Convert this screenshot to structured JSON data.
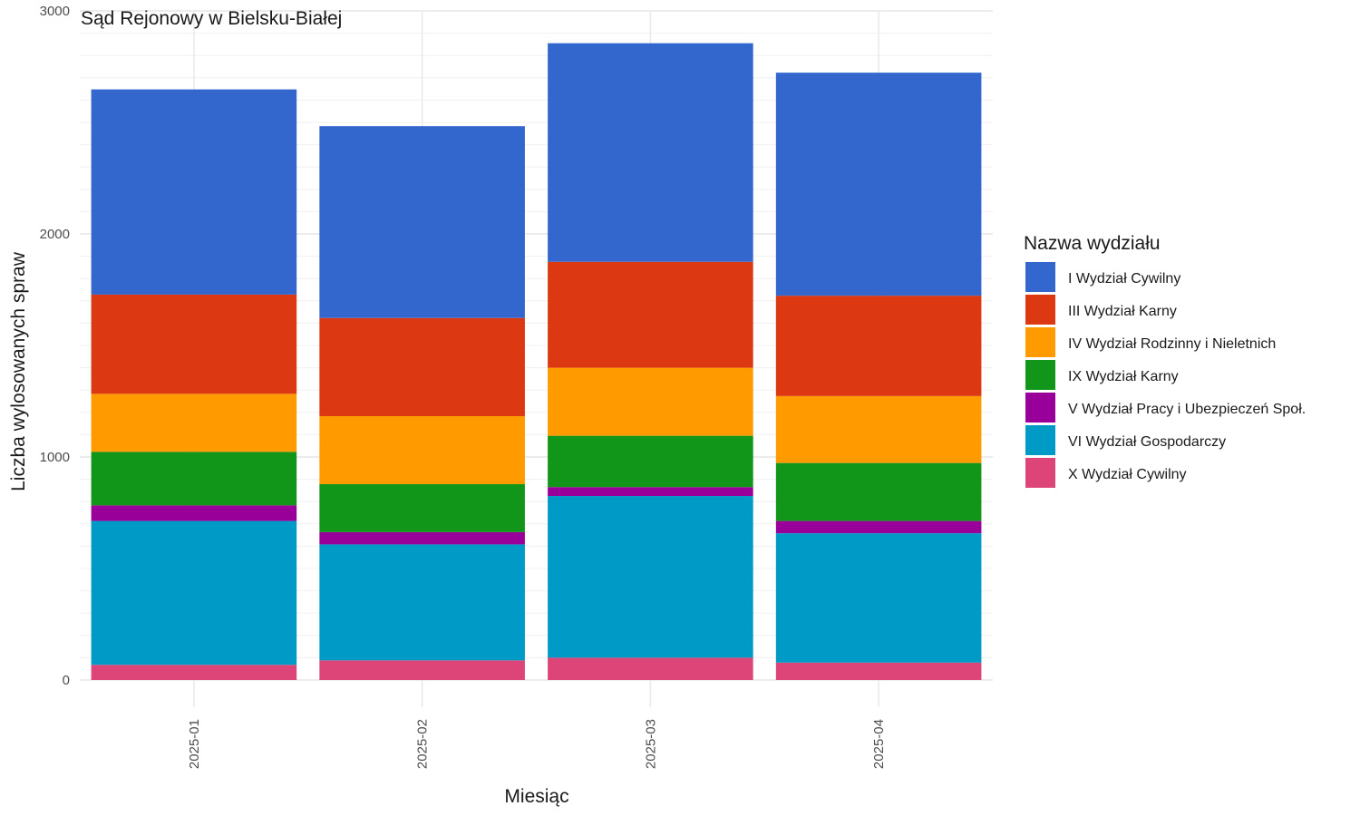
{
  "chart_data": {
    "type": "bar",
    "stacked": true,
    "title": "Sąd Rejonowy w Bielsku-Białej",
    "xlabel": "Miesiąc",
    "ylabel": "Liczba wylosowanych spraw",
    "ylim": [
      0,
      3000
    ],
    "yticks": [
      "0",
      "1000",
      "2000",
      "3000"
    ],
    "categories": [
      "2025-01",
      "2025-02",
      "2025-03",
      "2025-04"
    ],
    "legend_title": "Nazwa wydziału",
    "legend_position": "right",
    "grid": true,
    "series": [
      {
        "name": "I Wydział Cywilny",
        "color": "#3467CE",
        "values": [
          920,
          860,
          980,
          1000
        ]
      },
      {
        "name": "III Wydział Karny",
        "color": "#DC3812",
        "values": [
          445,
          440,
          475,
          450
        ]
      },
      {
        "name": "IV Wydział Rodzinny i Nieletnich",
        "color": "#FF9A00",
        "values": [
          260,
          305,
          305,
          300
        ]
      },
      {
        "name": "IX Wydział Karny",
        "color": "#119619",
        "values": [
          240,
          215,
          230,
          260
        ]
      },
      {
        "name": "V Wydział Pracy i Ubezpieczeń Społ.",
        "color": "#99009A",
        "values": [
          70,
          55,
          40,
          55
        ]
      },
      {
        "name": "VI Wydział Gospodarczy",
        "color": "#009AC6",
        "values": [
          645,
          520,
          725,
          580
        ]
      },
      {
        "name": "X Wydział Cywilny",
        "color": "#DD4578",
        "values": [
          68,
          88,
          100,
          78
        ]
      }
    ]
  }
}
